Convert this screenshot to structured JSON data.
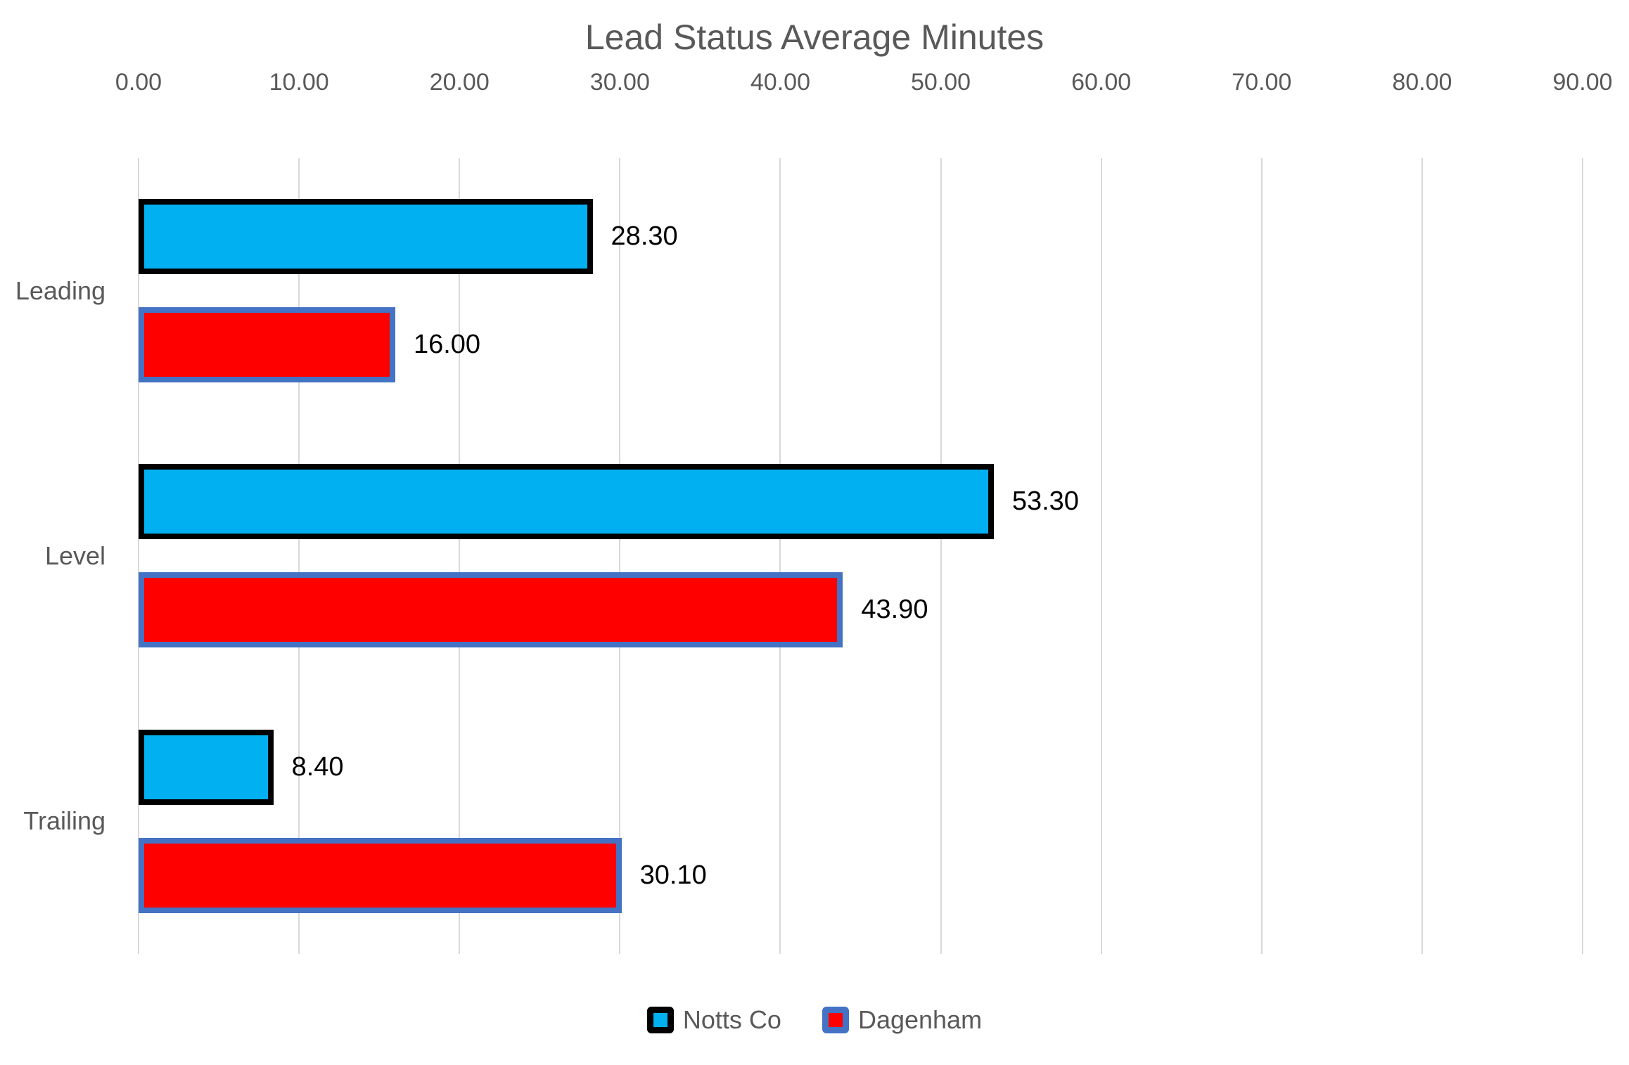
{
  "chart_data": {
    "type": "bar",
    "orientation": "horizontal",
    "title": "Lead Status Average Minutes",
    "categories": [
      "Leading",
      "Level",
      "Trailing"
    ],
    "series": [
      {
        "name": "Notts Co",
        "values": [
          28.3,
          53.3,
          8.4
        ],
        "value_labels": [
          "28.30",
          "53.30",
          "8.40"
        ],
        "fill_color": "#00B0F0",
        "border_color": "#000000"
      },
      {
        "name": "Dagenham",
        "values": [
          16.0,
          43.9,
          30.1
        ],
        "value_labels": [
          "16.00",
          "43.90",
          "30.10"
        ],
        "fill_color": "#FF0000",
        "border_color": "#4472C4"
      }
    ],
    "xlabel": "",
    "ylabel": "",
    "xlim": [
      0,
      90
    ],
    "x_ticks": [
      {
        "value": 0,
        "label": "0.00"
      },
      {
        "value": 10,
        "label": "10.00"
      },
      {
        "value": 20,
        "label": "20.00"
      },
      {
        "value": 30,
        "label": "30.00"
      },
      {
        "value": 40,
        "label": "40.00"
      },
      {
        "value": 50,
        "label": "50.00"
      },
      {
        "value": 60,
        "label": "60.00"
      },
      {
        "value": 70,
        "label": "70.00"
      },
      {
        "value": 80,
        "label": "80.00"
      },
      {
        "value": 90,
        "label": "90.00"
      }
    ],
    "grid": "vertical-on",
    "legend_position": "bottom",
    "styles": {
      "background": "#FFFFFF",
      "grid_color": "#D9D9D9",
      "axis_text_color": "#595959",
      "title_color": "#595959",
      "data_label_color": "#000000",
      "legend_text_color": "#595959"
    }
  }
}
